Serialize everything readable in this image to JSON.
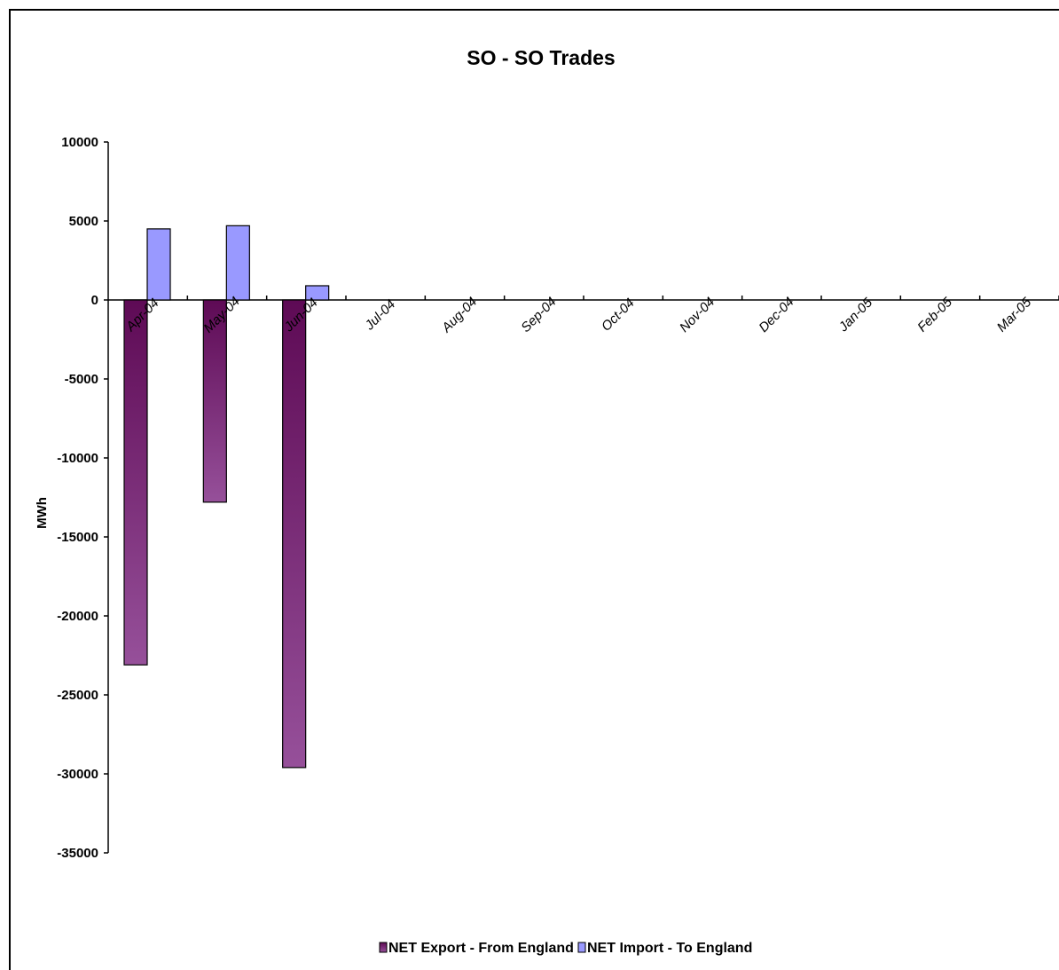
{
  "chart_data": {
    "type": "bar",
    "title": "SO - SO Trades",
    "ylabel": "MWh",
    "xlabel": "",
    "ylim": [
      -35000,
      10000
    ],
    "yticks": [
      10000,
      5000,
      0,
      -5000,
      -10000,
      -15000,
      -20000,
      -25000,
      -30000,
      -35000
    ],
    "categories": [
      "Apr-04",
      "May-04",
      "Jun-04",
      "Jul-04",
      "Aug-04",
      "Sep-04",
      "Oct-04",
      "Nov-04",
      "Dec-04",
      "Jan-05",
      "Feb-05",
      "Mar-05"
    ],
    "series": [
      {
        "name": "NET Export  - From England",
        "color": "#7a2a6e",
        "values": [
          -23100,
          -12800,
          -29600,
          null,
          null,
          null,
          null,
          null,
          null,
          null,
          null,
          null
        ]
      },
      {
        "name": "NET Import - To England",
        "color": "#9999ff",
        "values": [
          4500,
          4700,
          900,
          null,
          null,
          null,
          null,
          null,
          null,
          null,
          null,
          null
        ]
      }
    ],
    "legend_position": "bottom",
    "grid": false
  }
}
